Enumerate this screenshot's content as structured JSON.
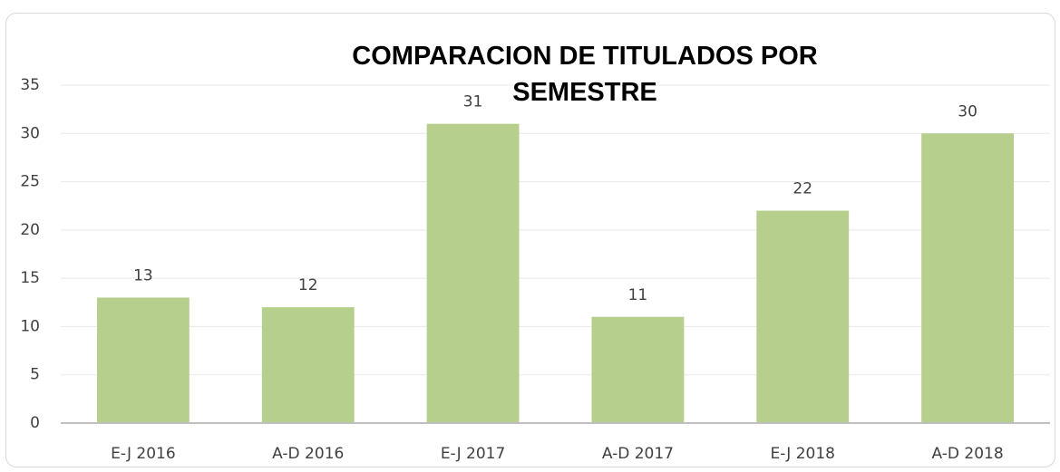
{
  "chart_data": {
    "type": "bar",
    "title": "COMPARACION DE TITULADOS POR SEMESTRE",
    "categories": [
      "E-J 2016",
      "A-D 2016",
      "E-J 2017",
      "A-D 2017",
      "E-J 2018",
      "A-D 2018"
    ],
    "values": [
      13,
      12,
      31,
      11,
      22,
      30
    ],
    "color": "#b7cf8c",
    "ylim": [
      0,
      35
    ],
    "yticks": [
      0,
      5,
      10,
      15,
      20,
      25,
      30,
      35
    ],
    "grid": true,
    "data_labels": true
  }
}
